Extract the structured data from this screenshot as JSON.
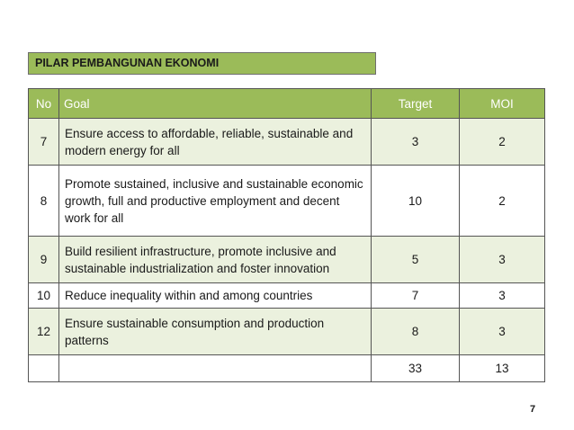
{
  "pillar_title": "PILAR PEMBANGUNAN EKONOMI",
  "table": {
    "headers": {
      "no": "No",
      "goal": "Goal",
      "target": "Target",
      "moi": "MOI"
    },
    "rows": [
      {
        "no": "7",
        "goal": "Ensure access to affordable, reliable, sustainable and modern energy for all",
        "target": "3",
        "moi": "2"
      },
      {
        "no": "8",
        "goal": "Promote sustained, inclusive and sustainable economic growth, full and productive employment and decent work for all",
        "target": "10",
        "moi": "2"
      },
      {
        "no": "9",
        "goal": "Build resilient infrastructure, promote inclusive and sustainable industrialization and foster innovation",
        "target": "5",
        "moi": "3"
      },
      {
        "no": "10",
        "goal": "Reduce inequality within and among countries",
        "target": "7",
        "moi": "3"
      },
      {
        "no": "12",
        "goal": "Ensure sustainable consumption and production patterns",
        "target": "8",
        "moi": "3"
      }
    ],
    "totals": {
      "no": "",
      "goal": "",
      "target": "33",
      "moi": "13"
    }
  },
  "page_number": "7",
  "colors": {
    "header_green": "#9bbb59",
    "row_shade": "#ebf1de",
    "border": "#555555"
  }
}
